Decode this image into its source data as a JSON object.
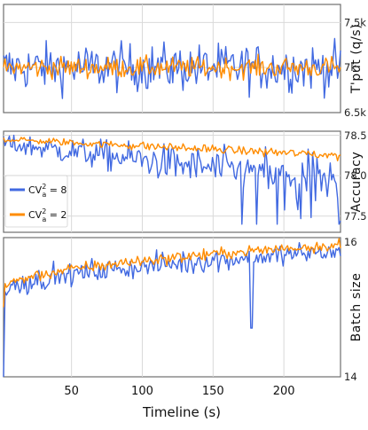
{
  "chart_data": {
    "type": "line",
    "xlabel": "Timeline (s)",
    "xlim": [
      2,
      240
    ],
    "xticks": [
      50,
      100,
      150,
      200
    ],
    "grid": true,
    "legend": {
      "placement": "middle-left of middle panel",
      "entries": [
        {
          "name": "CV_a^2 = 8",
          "color": "#4169e1"
        },
        {
          "name": "CV_a^2 = 2",
          "color": "#ff8c00"
        }
      ]
    },
    "panels": [
      {
        "ylabel": "T'put (q/s)",
        "ylim": [
          6500,
          7700
        ],
        "yticks": [
          6500,
          7000,
          7500
        ],
        "ytick_labels": [
          "6.5k",
          "7k",
          "7.5k"
        ],
        "series": [
          {
            "name": "CV_a^2 = 8",
            "color": "#4169e1",
            "x_start": 2,
            "x_end": 240,
            "samples": 230,
            "approx_mean": 7000,
            "approx_noise": 250,
            "min_observed": 6600,
            "max_observed": 7650
          },
          {
            "name": "CV_a^2 = 2",
            "color": "#ff8c00",
            "x_start": 2,
            "x_end": 240,
            "samples": 230,
            "approx_mean": 7000,
            "approx_noise": 110,
            "min_observed": 6850,
            "max_observed": 7250
          }
        ]
      },
      {
        "ylabel": "Accuracy",
        "ylim": [
          77.3,
          78.55
        ],
        "yticks": [
          77.5,
          78.0,
          78.5
        ],
        "ytick_labels": [
          "77.5",
          "78.0",
          "78.5"
        ],
        "series": [
          {
            "name": "CV_a^2 = 8",
            "color": "#4169e1",
            "x_start": 2,
            "x_end": 240,
            "samples": 230,
            "trend_start": 78.4,
            "trend_end": 77.9,
            "approx_noise": 0.12,
            "min_observed": 77.4
          },
          {
            "name": "CV_a^2 = 2",
            "color": "#ff8c00",
            "x_start": 2,
            "x_end": 240,
            "samples": 230,
            "trend_start": 78.45,
            "trend_end": 78.25,
            "approx_noise": 0.04
          }
        ]
      },
      {
        "ylabel": "Batch size",
        "ylim": [
          14,
          16
        ],
        "yticks": [
          14,
          16
        ],
        "ytick_labels": [
          "14",
          "16"
        ],
        "series": [
          {
            "name": "CV_a^2 = 8",
            "color": "#4169e1",
            "x_start": 2,
            "x_end": 240,
            "samples": 230,
            "start_value": 14.0,
            "trend_start": 15.2,
            "trend_end": 15.8,
            "approx_noise": 0.15,
            "min_observed": 14.7
          },
          {
            "name": "CV_a^2 = 2",
            "color": "#ff8c00",
            "x_start": 2,
            "x_end": 240,
            "samples": 230,
            "start_value": 15.0,
            "trend_start": 15.25,
            "trend_end": 15.9,
            "approx_noise": 0.08
          }
        ]
      }
    ]
  }
}
